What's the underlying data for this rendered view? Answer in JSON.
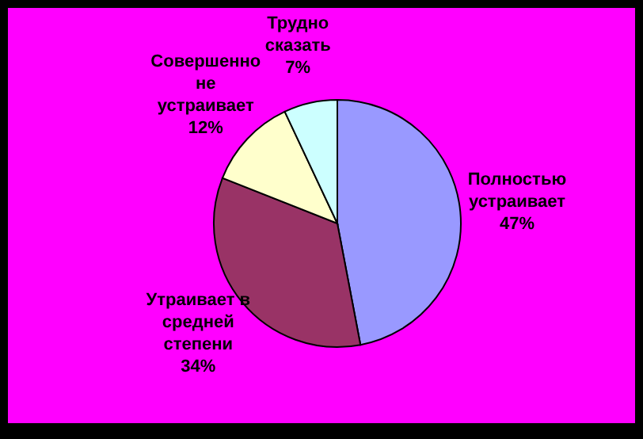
{
  "chart_data": {
    "type": "pie",
    "categories": [
      "Полностью устраивает",
      "Утраивает в средней степени",
      "Совершенно не устраивает",
      "Трудно сказать"
    ],
    "values": [
      47,
      34,
      12,
      7
    ],
    "value_labels": [
      "47%",
      "34%",
      "12%",
      "7%"
    ],
    "colors": [
      "#9999ff",
      "#993366",
      "#ffffcc",
      "#ccffff"
    ],
    "legend": false
  }
}
